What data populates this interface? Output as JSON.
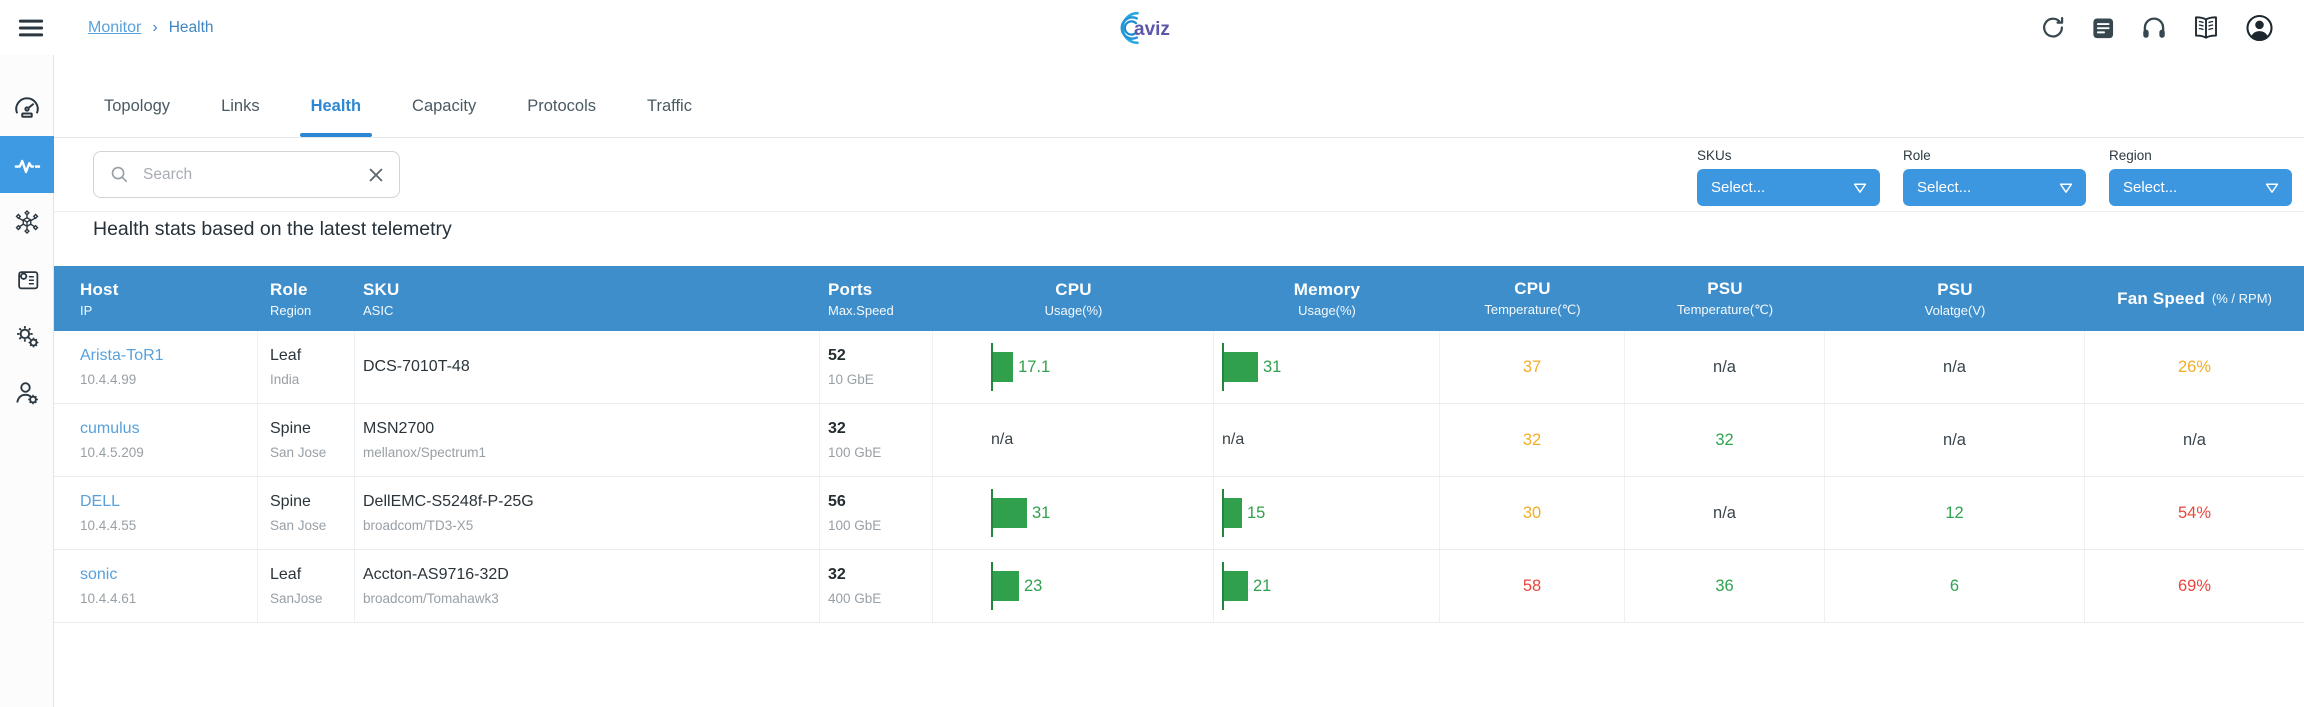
{
  "topbar": {
    "breadcrumb": {
      "items": [
        "Monitor",
        "Health"
      ],
      "separator": "›"
    },
    "logo_text": "aviz",
    "actions": [
      {
        "name": "refresh",
        "icon": "refresh-icon"
      },
      {
        "name": "reports",
        "icon": "report-icon"
      },
      {
        "name": "support",
        "icon": "headphones-icon"
      },
      {
        "name": "documentation",
        "icon": "book-icon"
      },
      {
        "name": "account",
        "icon": "account-icon"
      }
    ]
  },
  "sidebar": {
    "items": [
      {
        "name": "dashboard",
        "icon": "gauge-icon",
        "active": false
      },
      {
        "name": "health",
        "icon": "pulse-icon",
        "active": true
      },
      {
        "name": "fabric",
        "icon": "network-icon",
        "active": false
      },
      {
        "name": "config",
        "icon": "document-gear-icon",
        "active": false
      },
      {
        "name": "settings",
        "icon": "gears-icon",
        "active": false
      },
      {
        "name": "admin",
        "icon": "user-gear-icon",
        "active": false
      }
    ]
  },
  "tabs": {
    "items": [
      {
        "label": "Topology",
        "active": false
      },
      {
        "label": "Links",
        "active": false
      },
      {
        "label": "Health",
        "active": true
      },
      {
        "label": "Capacity",
        "active": false
      },
      {
        "label": "Protocols",
        "active": false
      },
      {
        "label": "Traffic",
        "active": false
      }
    ]
  },
  "filters": {
    "search_placeholder": "Search",
    "dropdowns": [
      {
        "label": "SKUs",
        "value": "Select..."
      },
      {
        "label": "Role",
        "value": "Select..."
      },
      {
        "label": "Region",
        "value": "Select..."
      }
    ]
  },
  "heading": "Health stats based on the latest telemetry",
  "colors": {
    "header_blue": "#3e8ecb",
    "accent_blue": "#3d9ae3",
    "link_blue": "#58a1dc",
    "green": "#2fa34f",
    "amber": "#f0ae26",
    "red": "#e8463d"
  },
  "table": {
    "na_label": "n/a",
    "columns": [
      {
        "key": "host",
        "main": "Host",
        "sub": "IP"
      },
      {
        "key": "role",
        "main": "Role",
        "sub": "Region"
      },
      {
        "key": "sku",
        "main": "SKU",
        "sub": "ASIC"
      },
      {
        "key": "ports",
        "main": "Ports",
        "sub": "Max.Speed"
      },
      {
        "key": "cpu-usage",
        "main": "CPU",
        "sub": "Usage(%)"
      },
      {
        "key": "memory-usage",
        "main": "Memory",
        "sub": "Usage(%)"
      },
      {
        "key": "cpu-temperature",
        "main": "CPU",
        "sub": "Temperature(℃)"
      },
      {
        "key": "psu-temperature",
        "main": "PSU",
        "sub": "Temperature(℃)"
      },
      {
        "key": "psu-voltage",
        "main": "PSU",
        "sub": "Volatge(V)"
      },
      {
        "key": "fan-speed",
        "main": "Fan Speed",
        "sub": "(% / RPM)",
        "inline": true
      }
    ],
    "rows": [
      {
        "host": "Arista-ToR1",
        "ip": "10.4.4.99",
        "role": "Leaf",
        "region": "India",
        "sku": "DCS-7010T-48",
        "asic": "",
        "ports": "52",
        "max_speed": "10 GbE",
        "cpu_usage": 17.1,
        "memory_usage": 31,
        "cpu_temp": {
          "value": "37",
          "status": "amber"
        },
        "psu_temp": {
          "value": "n/a",
          "status": "na"
        },
        "psu_voltage": {
          "value": "n/a",
          "status": "na"
        },
        "fan_speed": {
          "value": "26%",
          "status": "amber"
        }
      },
      {
        "host": "cumulus",
        "ip": "10.4.5.209",
        "role": "Spine",
        "region": "San Jose",
        "sku": "MSN2700",
        "asic": "mellanox/Spectrum1",
        "ports": "32",
        "max_speed": "100 GbE",
        "cpu_usage": null,
        "memory_usage": null,
        "cpu_temp": {
          "value": "32",
          "status": "amber"
        },
        "psu_temp": {
          "value": "32",
          "status": "green"
        },
        "psu_voltage": {
          "value": "n/a",
          "status": "na"
        },
        "fan_speed": {
          "value": "n/a",
          "status": "na"
        }
      },
      {
        "host": "DELL",
        "ip": "10.4.4.55",
        "role": "Spine",
        "region": "San Jose",
        "sku": "DellEMC-S5248f-P-25G",
        "asic": "broadcom/TD3-X5",
        "ports": "56",
        "max_speed": "100 GbE",
        "cpu_usage": 31,
        "memory_usage": 15,
        "cpu_temp": {
          "value": "30",
          "status": "amber"
        },
        "psu_temp": {
          "value": "n/a",
          "status": "na"
        },
        "psu_voltage": {
          "value": "12",
          "status": "green"
        },
        "fan_speed": {
          "value": "54%",
          "status": "red"
        }
      },
      {
        "host": "sonic",
        "ip": "10.4.4.61",
        "role": "Leaf",
        "region": "SanJose",
        "sku": "Accton-AS9716-32D",
        "asic": "broadcom/Tomahawk3",
        "ports": "32",
        "max_speed": "400 GbE",
        "cpu_usage": 23,
        "memory_usage": 21,
        "cpu_temp": {
          "value": "58",
          "status": "red"
        },
        "psu_temp": {
          "value": "36",
          "status": "green"
        },
        "psu_voltage": {
          "value": "6",
          "status": "green"
        },
        "fan_speed": {
          "value": "69%",
          "status": "red"
        }
      }
    ]
  }
}
